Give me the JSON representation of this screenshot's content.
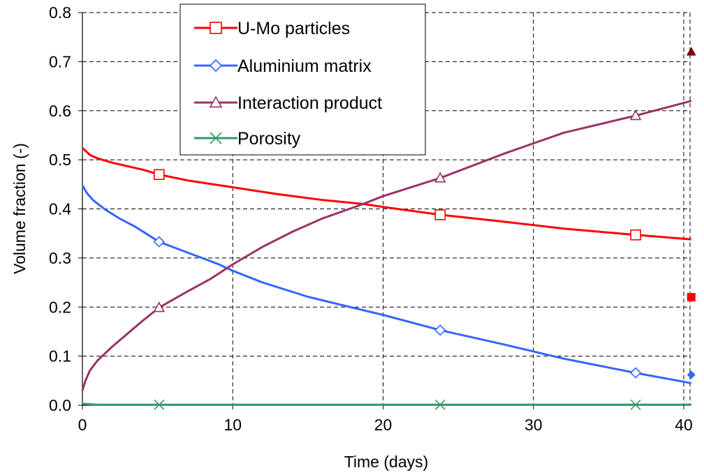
{
  "chart_data": {
    "type": "line",
    "xlabel": "Time (days)",
    "ylabel": "Volume fraction  (-)",
    "xlim": [
      0,
      40.5
    ],
    "ylim": [
      0,
      0.8
    ],
    "xticks": [
      0,
      10,
      20,
      30,
      40
    ],
    "yticks": [
      0.0,
      0.1,
      0.2,
      0.3,
      0.4,
      0.5,
      0.6,
      0.7,
      0.8
    ],
    "ytick_labels": [
      "0.0",
      "0.1",
      "0.2",
      "0.3",
      "0.4",
      "0.5",
      "0.6",
      "0.7",
      "0.8"
    ],
    "grid": true,
    "legend_position": "top-left",
    "series": [
      {
        "name": "U-Mo particles",
        "color": "#ff0000",
        "marker": "open-square",
        "x": [
          0,
          0.5,
          1,
          2,
          3,
          4,
          5.1,
          7,
          10,
          13,
          16,
          18.7,
          20,
          23.8,
          28,
          32,
          36.8,
          40.5
        ],
        "y": [
          0.524,
          0.51,
          0.503,
          0.494,
          0.487,
          0.48,
          0.47,
          0.458,
          0.444,
          0.43,
          0.418,
          0.41,
          0.404,
          0.388,
          0.374,
          0.36,
          0.347,
          0.338
        ],
        "marker_x": [
          5.1,
          23.8,
          36.8
        ],
        "marker_y": [
          0.47,
          0.388,
          0.347
        ]
      },
      {
        "name": "Aluminium matrix",
        "color": "#3366ff",
        "marker": "open-diamond",
        "x": [
          0,
          0.3,
          0.7,
          1.5,
          2.5,
          3.5,
          5.1,
          7,
          9,
          10,
          12,
          15,
          18.5,
          20,
          23.8,
          28,
          32,
          36.8,
          40.5
        ],
        "y": [
          0.448,
          0.432,
          0.418,
          0.399,
          0.38,
          0.364,
          0.333,
          0.311,
          0.288,
          0.274,
          0.25,
          0.221,
          0.195,
          0.184,
          0.153,
          0.124,
          0.095,
          0.066,
          0.045
        ],
        "marker_x": [
          5.1,
          23.8,
          36.8
        ],
        "marker_y": [
          0.333,
          0.153,
          0.066
        ]
      },
      {
        "name": "Interaction product",
        "color": "#993366",
        "marker": "open-triangle",
        "x": [
          0,
          0.2,
          0.5,
          1,
          2,
          3,
          4,
          5.1,
          7,
          8.5,
          10,
          12,
          14,
          16,
          18.5,
          20,
          23.8,
          28,
          32,
          36.8,
          40.5
        ],
        "y": [
          0.03,
          0.05,
          0.071,
          0.091,
          0.12,
          0.146,
          0.172,
          0.199,
          0.232,
          0.257,
          0.287,
          0.323,
          0.354,
          0.381,
          0.408,
          0.426,
          0.463,
          0.512,
          0.555,
          0.59,
          0.62
        ],
        "marker_x": [
          5.1,
          23.8,
          36.8
        ],
        "marker_y": [
          0.199,
          0.463,
          0.59
        ]
      },
      {
        "name": "Porosity",
        "color": "#339966",
        "marker": "x",
        "x": [
          0,
          0.5,
          1,
          10,
          20,
          30,
          40.5
        ],
        "y": [
          0.003,
          0.002,
          0.001,
          0.001,
          0.001,
          0.001,
          0.001
        ],
        "marker_x": [
          5.1,
          23.8,
          36.8
        ],
        "marker_y": [
          0.001,
          0.001,
          0.001
        ]
      }
    ],
    "extra_points": [
      {
        "shape": "filled-triangle",
        "color": "#800000",
        "x": 40.5,
        "y": 0.72
      },
      {
        "shape": "filled-square",
        "color": "#ff0000",
        "x": 40.5,
        "y": 0.22
      },
      {
        "shape": "filled-diamond",
        "color": "#3366ff",
        "x": 40.5,
        "y": 0.062
      }
    ]
  }
}
